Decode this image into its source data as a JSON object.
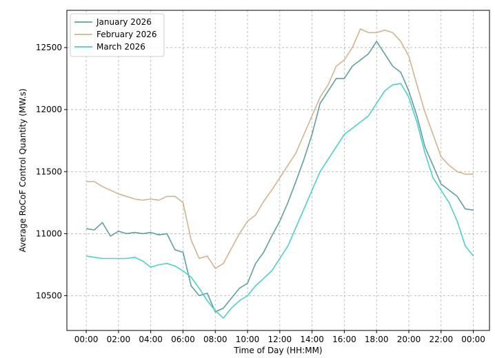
{
  "chart_data": {
    "type": "line",
    "title": "",
    "xlabel": "Time of Day (HH:MM)",
    "ylabel": "Average RoCoF Control Quantity (MW.s)",
    "xlim_hours": [
      -1.2,
      25.0
    ],
    "ylim": [
      10220,
      12800
    ],
    "x_ticks": [
      "00:00",
      "02:00",
      "04:00",
      "06:00",
      "08:00",
      "10:00",
      "12:00",
      "14:00",
      "16:00",
      "18:00",
      "20:00",
      "22:00",
      "00:00"
    ],
    "y_ticks": [
      10500,
      11000,
      11500,
      12000,
      12500
    ],
    "grid": true,
    "grid_style": "dashed",
    "legend_position": "top-left",
    "x_hours": [
      0,
      0.5,
      1,
      1.5,
      2,
      2.5,
      3,
      3.5,
      4,
      4.5,
      5,
      5.5,
      6,
      6.5,
      7,
      7.5,
      8,
      8.5,
      9,
      9.5,
      10,
      10.5,
      11,
      11.5,
      12,
      12.5,
      13,
      13.5,
      14,
      14.5,
      15,
      15.5,
      16,
      16.5,
      17,
      17.5,
      18,
      18.5,
      19,
      19.5,
      20,
      20.5,
      21,
      21.5,
      22,
      22.5,
      23,
      23.5,
      24
    ],
    "series": [
      {
        "name": "January 2026",
        "color": "#5f9ea0",
        "values": [
          11040,
          11030,
          11090,
          10980,
          11020,
          11000,
          11010,
          11000,
          11010,
          10990,
          11000,
          10870,
          10850,
          10580,
          10500,
          10520,
          10370,
          10400,
          10480,
          10560,
          10600,
          10760,
          10850,
          10980,
          11100,
          11250,
          11420,
          11600,
          11800,
          12050,
          12150,
          12250,
          12250,
          12350,
          12400,
          12450,
          12550,
          12450,
          12350,
          12300,
          12150,
          11950,
          11700,
          11550,
          11400,
          11350,
          11300,
          11200,
          11190
        ]
      },
      {
        "name": "February 2026",
        "color": "#d2b48c",
        "values": [
          11420,
          11420,
          11380,
          11350,
          11320,
          11300,
          11280,
          11270,
          11280,
          11270,
          11300,
          11300,
          11250,
          10950,
          10800,
          10820,
          10720,
          10760,
          10880,
          11000,
          11100,
          11150,
          11260,
          11350,
          11450,
          11550,
          11650,
          11800,
          11950,
          12100,
          12200,
          12350,
          12400,
          12500,
          12650,
          12620,
          12620,
          12640,
          12620,
          12550,
          12430,
          12200,
          11980,
          11800,
          11620,
          11550,
          11500,
          11480,
          11480
        ]
      },
      {
        "name": "March 2026",
        "color": "#48d1cc",
        "values": [
          10820,
          10810,
          10800,
          10800,
          10800,
          10800,
          10810,
          10780,
          10730,
          10750,
          10760,
          10740,
          10700,
          10650,
          10560,
          10460,
          10380,
          10320,
          10400,
          10460,
          10500,
          10580,
          10640,
          10700,
          10800,
          10900,
          11050,
          11200,
          11350,
          11500,
          11600,
          11700,
          11800,
          11850,
          11900,
          11950,
          12050,
          12150,
          12200,
          12210,
          12100,
          11900,
          11650,
          11450,
          11350,
          11250,
          11100,
          10900,
          10820
        ]
      }
    ]
  }
}
